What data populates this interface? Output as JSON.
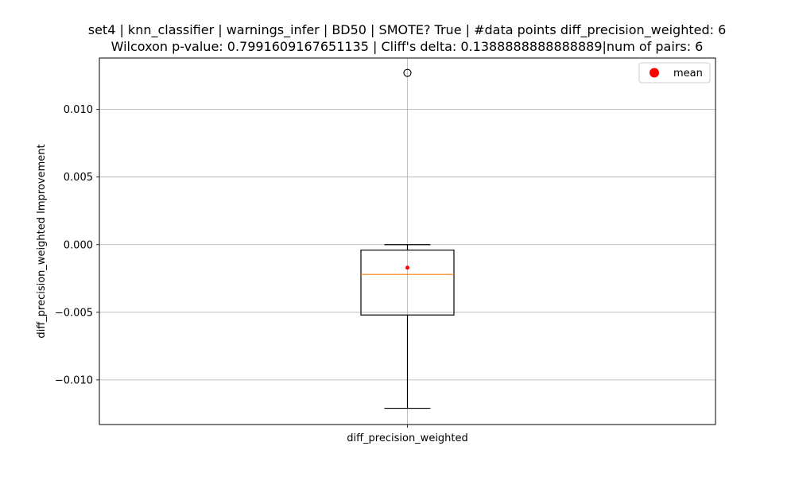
{
  "chart_data": {
    "type": "box",
    "title_line1": "set4 | knn_classifier | warnings_infer | BD50 | SMOTE? True | #data points diff_precision_weighted: 6",
    "title_line2": "Wilcoxon p-value: 0.7991609167651135 | Cliff's delta: 0.1388888888888889|num of pairs: 6",
    "ylabel": "diff_precision_weighted Improvement",
    "xlabel": "",
    "categories": [
      "diff_precision_weighted"
    ],
    "ylim": [
      -0.0133,
      0.0138
    ],
    "yticks": [
      -0.01,
      -0.005,
      0.0,
      0.005,
      0.01
    ],
    "ytick_labels": [
      "−0.010",
      "−0.005",
      "0.000",
      "0.005",
      "0.010"
    ],
    "grid": true,
    "box": {
      "whisker_low": -0.0121,
      "q1": -0.0052,
      "median": -0.0022,
      "q3": -0.0004,
      "whisker_high": 0.0,
      "mean": -0.0017,
      "outliers": [
        0.0127
      ]
    },
    "legend": {
      "label": "mean",
      "placement": "top-right"
    },
    "colors": {
      "median": "#ff7f0e",
      "mean": "#ff0000",
      "box": "#000000",
      "grid": "#b0b0b0"
    }
  }
}
